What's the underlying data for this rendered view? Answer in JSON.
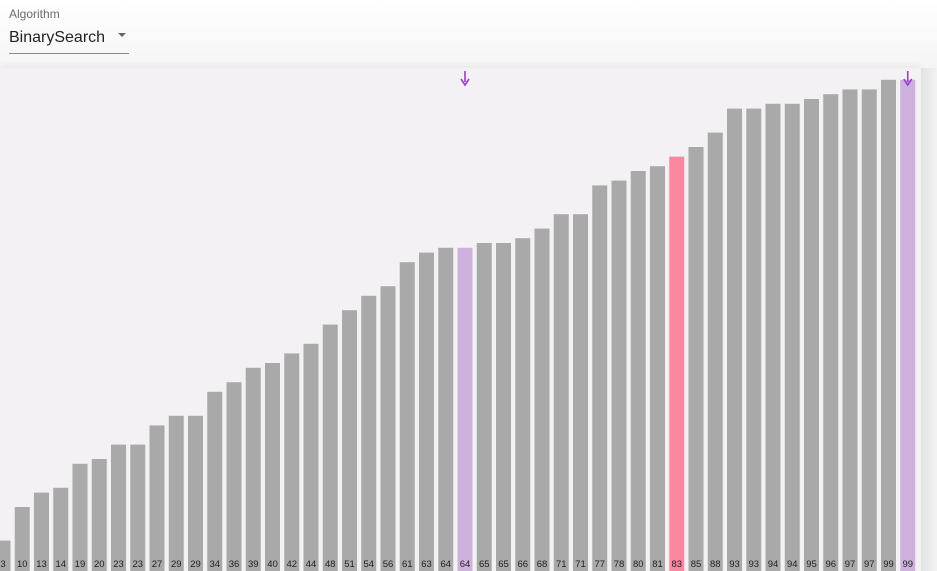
{
  "algorithm_select": {
    "label": "Algorithm",
    "value": "BinarySearch"
  },
  "colors": {
    "default_bar": "#a9a9a9",
    "range_bar": "#cdb1dc",
    "current_bar": "#fb87a1",
    "pointer": "#9a3fcc"
  },
  "chart_data": {
    "type": "bar",
    "categories": [
      "3",
      "10",
      "13",
      "14",
      "19",
      "20",
      "23",
      "23",
      "27",
      "29",
      "29",
      "34",
      "36",
      "39",
      "40",
      "42",
      "44",
      "48",
      "51",
      "54",
      "56",
      "61",
      "63",
      "64",
      "64",
      "65",
      "65",
      "66",
      "68",
      "71",
      "71",
      "77",
      "78",
      "80",
      "81",
      "83",
      "85",
      "88",
      "93",
      "93",
      "94",
      "94",
      "95",
      "96",
      "97",
      "97",
      "99",
      "99"
    ],
    "values": [
      3,
      10,
      13,
      14,
      19,
      20,
      23,
      23,
      27,
      29,
      29,
      34,
      36,
      39,
      40,
      42,
      44,
      48,
      51,
      54,
      56,
      61,
      63,
      64,
      64,
      65,
      65,
      66,
      68,
      71,
      71,
      77,
      78,
      80,
      81,
      83,
      85,
      88,
      93,
      93,
      94,
      94,
      95,
      96,
      97,
      97,
      99,
      99
    ],
    "highlights": {
      "range_start_index": 24,
      "range_end_index": 47,
      "current_index": 35
    },
    "pointers": [
      {
        "name": "low",
        "index": 24
      },
      {
        "name": "high",
        "index": 47
      }
    ]
  }
}
